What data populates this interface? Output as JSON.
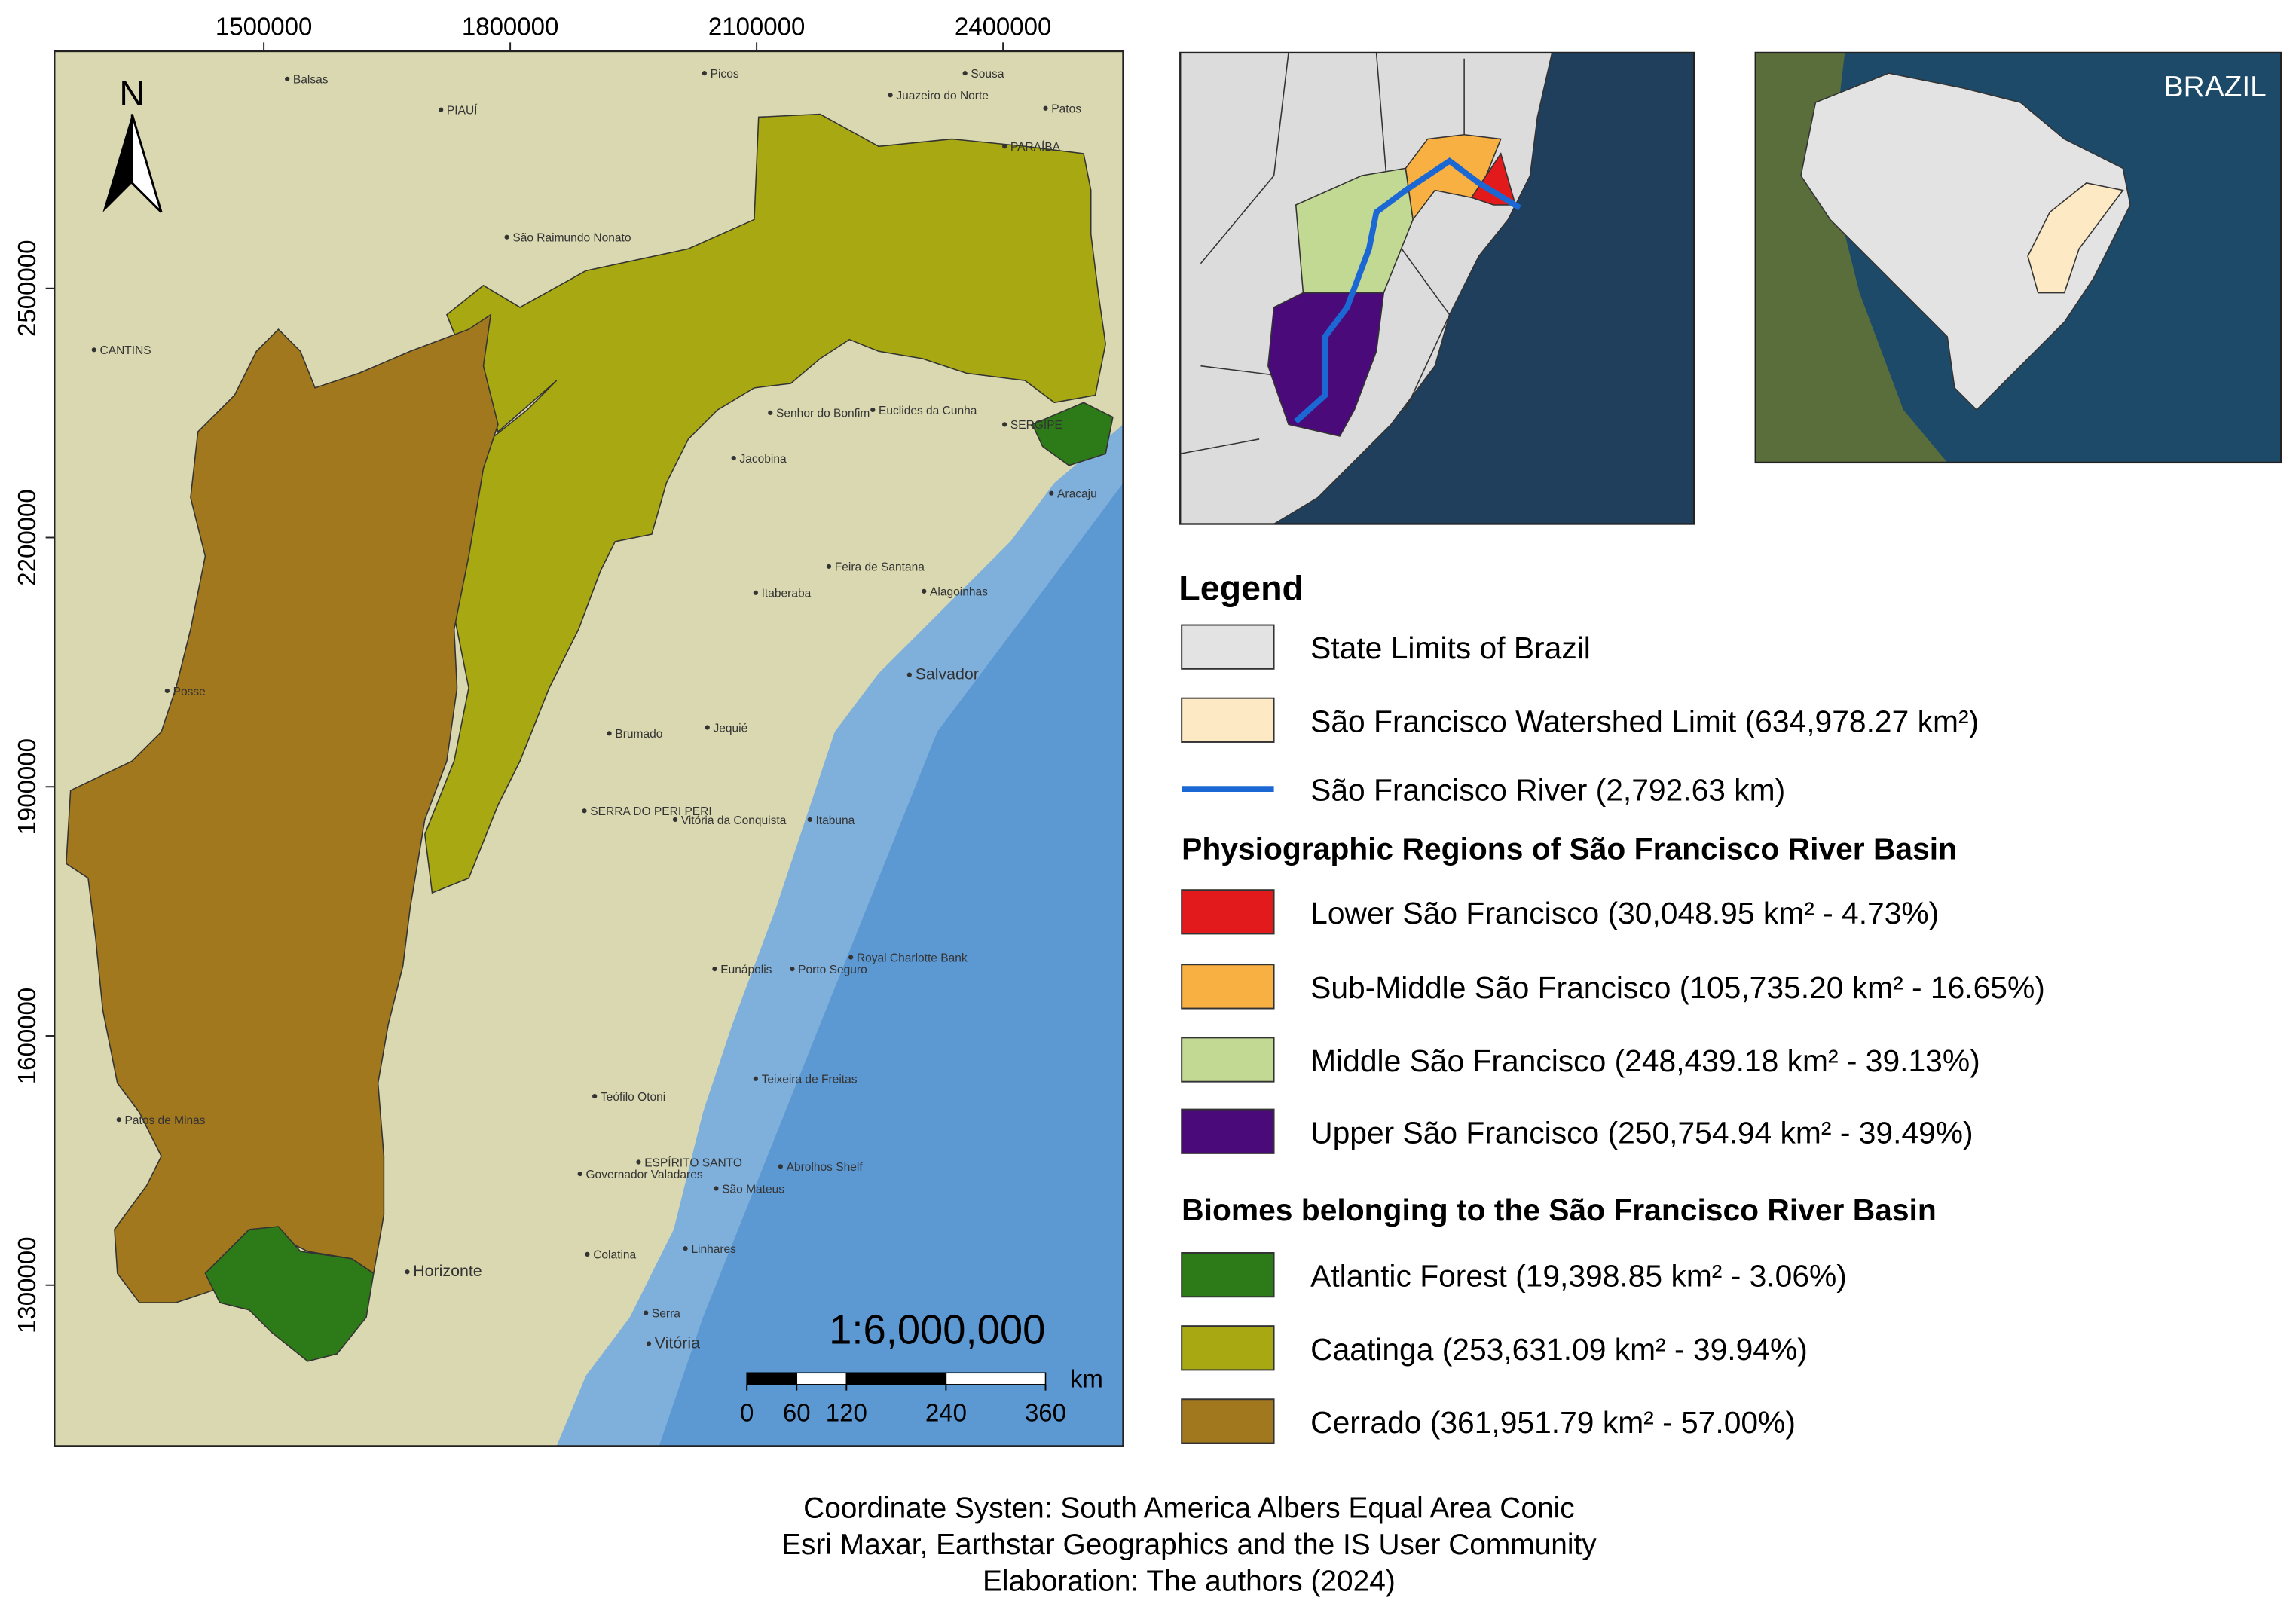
{
  "map": {
    "xlim": [
      1245100,
      2546200
    ],
    "ylim": [
      1106200,
      2785500
    ],
    "xticks": [
      1500000,
      1800000,
      2100000,
      2400000
    ],
    "yticks": [
      1300000,
      1600000,
      1900000,
      2200000,
      2500000
    ]
  },
  "north": "N",
  "scale_bar": {
    "ratio": "1:6,000,000",
    "unit": "km",
    "ticks": [
      0,
      60,
      120,
      240,
      360
    ]
  },
  "inset": {
    "label": "BRAZIL"
  },
  "places": [
    "Balsas",
    "Picos",
    "PIAUÍ",
    "Sousa",
    "Patos",
    "PARAÍBA",
    "Juazeiro do Norte",
    "São Raimundo Nonato",
    "CANTINS",
    "Senhor do Bonfim",
    "Euclides da Cunha",
    "Jacobina",
    "SERGIPE",
    "Aracaju",
    "Feira de Santana",
    "Itaberaba",
    "Alagoinhas",
    "Salvador",
    "Posse",
    "Brumado",
    "Jequié",
    "SERRA DO PERI PERI",
    "Vitória da Conquista",
    "Itabuna",
    "Eunápolis",
    "Porto Seguro",
    "Royal Charlotte Bank",
    "Teófilo Otoni",
    "Teixeira de Freitas",
    "Abrolhos Shelf",
    "ESPÍRITO SANTO",
    "Governador Valadares",
    "São Mateus",
    "Linhares",
    "Colatina",
    "Horizonte",
    "Serra",
    "Vitória",
    "Patos de Minas"
  ],
  "legend": {
    "title": "Legend",
    "base": [
      {
        "label": "State Limits of Brazil",
        "color": "#e3e3e3"
      },
      {
        "label": "São Francisco Watershed Limit (634,978.27 km²)",
        "color": "#fde9c4"
      },
      {
        "label": "São Francisco River (2,792.63 km)",
        "color": "#1b68d4"
      }
    ],
    "regions_title": "Physiographic Regions of São Francisco River Basin",
    "regions": [
      {
        "label": "Lower São Francisco (30,048.95 km² - 4.73%)",
        "color": "#e31a1c"
      },
      {
        "label": "Sub-Middle São Francisco (105,735.20 km² - 16.65%)",
        "color": "#f9b043"
      },
      {
        "label": "Middle São Francisco (248,439.18 km² - 39.13%)",
        "color": "#c2d993"
      },
      {
        "label": "Upper São Francisco (250,754.94 km² - 39.49%)",
        "color": "#4a0a7a"
      }
    ],
    "biomes_title": "Biomes belonging to the São Francisco River Basin",
    "biomes": [
      {
        "label": "Atlantic Forest (19,398.85 km² - 3.06%)",
        "color": "#2d7a18"
      },
      {
        "label": "Caatinga (253,631.09 km² - 39.94%)",
        "color": "#a8a812"
      },
      {
        "label": "Cerrado (361,951.79 km² - 57.00%)",
        "color": "#a2781f"
      }
    ]
  },
  "credits": [
    "Coordinate Systen: South America Albers Equal Area Conic",
    "Esri Maxar, Earthstar Geographics and the IS User Community",
    "Elaboration: The authors (2024)"
  ]
}
